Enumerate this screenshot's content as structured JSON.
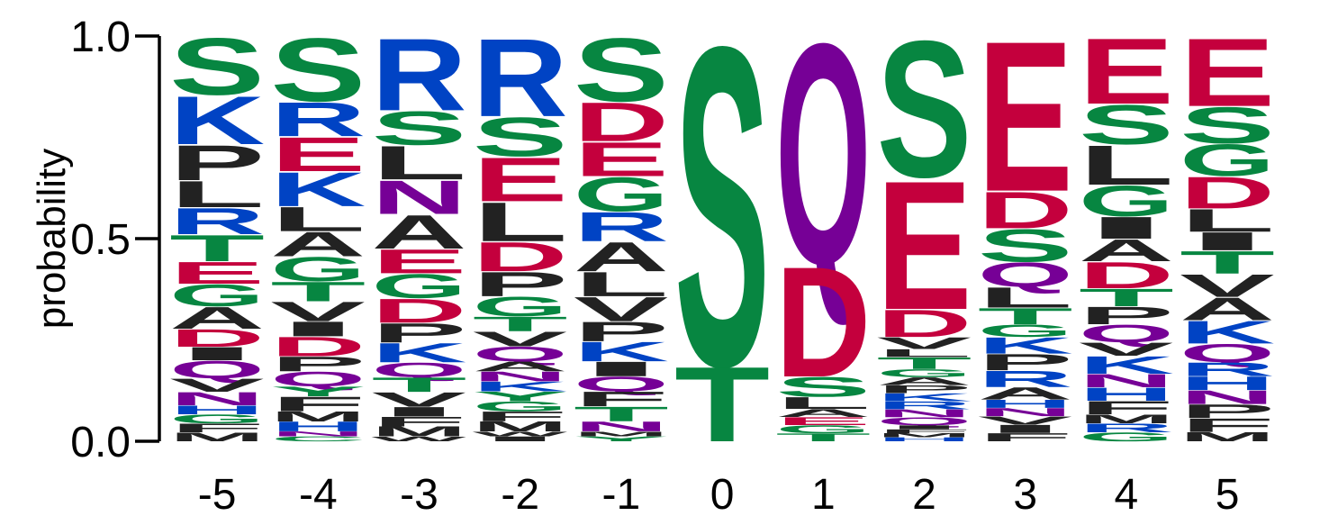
{
  "chart_data": {
    "type": "sequence-logo",
    "ylabel": "probability",
    "ylim": [
      0,
      1
    ],
    "yticks": [
      "0.0",
      "0.5",
      "1.0"
    ],
    "positions": [
      "-5",
      "-4",
      "-3",
      "-2",
      "-1",
      "0",
      "1",
      "2",
      "3",
      "4",
      "5"
    ],
    "colors": {
      "S": "#078641",
      "T": "#078641",
      "G": "#078641",
      "Y": "#078641",
      "C": "#078641",
      "N": "#760096",
      "Q": "#760096",
      "K": "#0043c4",
      "R": "#0043c4",
      "H": "#0043c4",
      "D": "#c4003d",
      "E": "#c4003d",
      "A": "#222222",
      "V": "#222222",
      "L": "#222222",
      "I": "#222222",
      "P": "#222222",
      "F": "#222222",
      "M": "#222222",
      "W": "#222222"
    },
    "stacks": [
      {
        "position": "-5",
        "letters": [
          {
            "aa": "S",
            "p": 0.13
          },
          {
            "aa": "K",
            "p": 0.11
          },
          {
            "aa": "P",
            "p": 0.08
          },
          {
            "aa": "L",
            "p": 0.06
          },
          {
            "aa": "R",
            "p": 0.06
          },
          {
            "aa": "T",
            "p": 0.06
          },
          {
            "aa": "E",
            "p": 0.05
          },
          {
            "aa": "G",
            "p": 0.05
          },
          {
            "aa": "A",
            "p": 0.05
          },
          {
            "aa": "D",
            "p": 0.04
          },
          {
            "aa": "I",
            "p": 0.03
          },
          {
            "aa": "Q",
            "p": 0.04
          },
          {
            "aa": "V",
            "p": 0.03
          },
          {
            "aa": "N",
            "p": 0.03
          },
          {
            "aa": "H",
            "p": 0.02
          },
          {
            "aa": "G",
            "p": 0.02
          },
          {
            "aa": "F",
            "p": 0.02
          },
          {
            "aa": "M",
            "p": 0.02
          }
        ]
      },
      {
        "position": "-4",
        "letters": [
          {
            "aa": "S",
            "p": 0.13
          },
          {
            "aa": "R",
            "p": 0.07
          },
          {
            "aa": "E",
            "p": 0.07
          },
          {
            "aa": "K",
            "p": 0.07
          },
          {
            "aa": "L",
            "p": 0.05
          },
          {
            "aa": "A",
            "p": 0.05
          },
          {
            "aa": "G",
            "p": 0.05
          },
          {
            "aa": "T",
            "p": 0.04
          },
          {
            "aa": "V",
            "p": 0.04
          },
          {
            "aa": "I",
            "p": 0.03
          },
          {
            "aa": "D",
            "p": 0.04
          },
          {
            "aa": "P",
            "p": 0.03
          },
          {
            "aa": "Q",
            "p": 0.03
          },
          {
            "aa": "Y",
            "p": 0.02
          },
          {
            "aa": "F",
            "p": 0.03
          },
          {
            "aa": "M",
            "p": 0.02
          },
          {
            "aa": "H",
            "p": 0.02
          },
          {
            "aa": "N",
            "p": 0.01
          },
          {
            "aa": "C",
            "p": 0.01
          }
        ]
      },
      {
        "position": "-3",
        "letters": [
          {
            "aa": "R",
            "p": 0.15
          },
          {
            "aa": "S",
            "p": 0.07
          },
          {
            "aa": "L",
            "p": 0.07
          },
          {
            "aa": "N",
            "p": 0.07
          },
          {
            "aa": "A",
            "p": 0.07
          },
          {
            "aa": "E",
            "p": 0.05
          },
          {
            "aa": "G",
            "p": 0.05
          },
          {
            "aa": "D",
            "p": 0.05
          },
          {
            "aa": "P",
            "p": 0.04
          },
          {
            "aa": "K",
            "p": 0.04
          },
          {
            "aa": "Q",
            "p": 0.03
          },
          {
            "aa": "T",
            "p": 0.03
          },
          {
            "aa": "V",
            "p": 0.03
          },
          {
            "aa": "I",
            "p": 0.02
          },
          {
            "aa": "F",
            "p": 0.02
          },
          {
            "aa": "M",
            "p": 0.02
          },
          {
            "aa": "W",
            "p": 0.01
          }
        ]
      },
      {
        "position": "-2",
        "letters": [
          {
            "aa": "R",
            "p": 0.16
          },
          {
            "aa": "S",
            "p": 0.08
          },
          {
            "aa": "E",
            "p": 0.09
          },
          {
            "aa": "L",
            "p": 0.08
          },
          {
            "aa": "D",
            "p": 0.06
          },
          {
            "aa": "P",
            "p": 0.05
          },
          {
            "aa": "G",
            "p": 0.04
          },
          {
            "aa": "T",
            "p": 0.03
          },
          {
            "aa": "V",
            "p": 0.03
          },
          {
            "aa": "Q",
            "p": 0.03
          },
          {
            "aa": "A",
            "p": 0.02
          },
          {
            "aa": "N",
            "p": 0.02
          },
          {
            "aa": "K",
            "p": 0.02
          },
          {
            "aa": "Y",
            "p": 0.02
          },
          {
            "aa": "G",
            "p": 0.02
          },
          {
            "aa": "F",
            "p": 0.02
          },
          {
            "aa": "M",
            "p": 0.02
          },
          {
            "aa": "W",
            "p": 0.01
          },
          {
            "aa": "I",
            "p": 0.01
          }
        ]
      },
      {
        "position": "-1",
        "letters": [
          {
            "aa": "S",
            "p": 0.13
          },
          {
            "aa": "D",
            "p": 0.08
          },
          {
            "aa": "E",
            "p": 0.07
          },
          {
            "aa": "G",
            "p": 0.07
          },
          {
            "aa": "R",
            "p": 0.06
          },
          {
            "aa": "A",
            "p": 0.06
          },
          {
            "aa": "L",
            "p": 0.05
          },
          {
            "aa": "V",
            "p": 0.05
          },
          {
            "aa": "P",
            "p": 0.04
          },
          {
            "aa": "K",
            "p": 0.04
          },
          {
            "aa": "I",
            "p": 0.03
          },
          {
            "aa": "Q",
            "p": 0.03
          },
          {
            "aa": "F",
            "p": 0.03
          },
          {
            "aa": "T",
            "p": 0.03
          },
          {
            "aa": "N",
            "p": 0.02
          },
          {
            "aa": "M",
            "p": 0.01
          },
          {
            "aa": "Y",
            "p": 0.01
          }
        ]
      },
      {
        "position": "0",
        "letters": [
          {
            "aa": "S",
            "p": 0.81
          },
          {
            "aa": "T",
            "p": 0.19
          }
        ]
      },
      {
        "position": "1",
        "letters": [
          {
            "aa": "Q",
            "p": 0.56
          },
          {
            "aa": "D",
            "p": 0.28
          },
          {
            "aa": "S",
            "p": 0.05
          },
          {
            "aa": "L",
            "p": 0.03
          },
          {
            "aa": "A",
            "p": 0.02
          },
          {
            "aa": "E",
            "p": 0.02
          },
          {
            "aa": "G",
            "p": 0.02
          },
          {
            "aa": "T",
            "p": 0.02
          }
        ]
      },
      {
        "position": "2",
        "letters": [
          {
            "aa": "S",
            "p": 0.35
          },
          {
            "aa": "E",
            "p": 0.33
          },
          {
            "aa": "D",
            "p": 0.07
          },
          {
            "aa": "V",
            "p": 0.03
          },
          {
            "aa": "L",
            "p": 0.02
          },
          {
            "aa": "T",
            "p": 0.03
          },
          {
            "aa": "G",
            "p": 0.02
          },
          {
            "aa": "A",
            "p": 0.02
          },
          {
            "aa": "P",
            "p": 0.02
          },
          {
            "aa": "K",
            "p": 0.02
          },
          {
            "aa": "R",
            "p": 0.02
          },
          {
            "aa": "N",
            "p": 0.02
          },
          {
            "aa": "Q",
            "p": 0.02
          },
          {
            "aa": "I",
            "p": 0.01
          },
          {
            "aa": "F",
            "p": 0.01
          },
          {
            "aa": "M",
            "p": 0.01
          },
          {
            "aa": "H",
            "p": 0.01
          }
        ]
      },
      {
        "position": "3",
        "letters": [
          {
            "aa": "E",
            "p": 0.37
          },
          {
            "aa": "D",
            "p": 0.09
          },
          {
            "aa": "S",
            "p": 0.08
          },
          {
            "aa": "Q",
            "p": 0.06
          },
          {
            "aa": "L",
            "p": 0.05
          },
          {
            "aa": "T",
            "p": 0.04
          },
          {
            "aa": "G",
            "p": 0.03
          },
          {
            "aa": "K",
            "p": 0.04
          },
          {
            "aa": "P",
            "p": 0.04
          },
          {
            "aa": "R",
            "p": 0.04
          },
          {
            "aa": "A",
            "p": 0.03
          },
          {
            "aa": "H",
            "p": 0.02
          },
          {
            "aa": "N",
            "p": 0.02
          },
          {
            "aa": "V",
            "p": 0.02
          },
          {
            "aa": "I",
            "p": 0.02
          },
          {
            "aa": "F",
            "p": 0.02
          }
        ]
      },
      {
        "position": "4",
        "letters": [
          {
            "aa": "E",
            "p": 0.15
          },
          {
            "aa": "S",
            "p": 0.09
          },
          {
            "aa": "L",
            "p": 0.09
          },
          {
            "aa": "G",
            "p": 0.07
          },
          {
            "aa": "I",
            "p": 0.05
          },
          {
            "aa": "A",
            "p": 0.05
          },
          {
            "aa": "D",
            "p": 0.06
          },
          {
            "aa": "T",
            "p": 0.04
          },
          {
            "aa": "P",
            "p": 0.04
          },
          {
            "aa": "Q",
            "p": 0.04
          },
          {
            "aa": "V",
            "p": 0.03
          },
          {
            "aa": "K",
            "p": 0.04
          },
          {
            "aa": "N",
            "p": 0.03
          },
          {
            "aa": "H",
            "p": 0.03
          },
          {
            "aa": "F",
            "p": 0.03
          },
          {
            "aa": "M",
            "p": 0.02
          },
          {
            "aa": "R",
            "p": 0.02
          },
          {
            "aa": "G",
            "p": 0.02
          }
        ]
      },
      {
        "position": "5",
        "letters": [
          {
            "aa": "E",
            "p": 0.15
          },
          {
            "aa": "S",
            "p": 0.08
          },
          {
            "aa": "G",
            "p": 0.07
          },
          {
            "aa": "D",
            "p": 0.07
          },
          {
            "aa": "L",
            "p": 0.05
          },
          {
            "aa": "I",
            "p": 0.04
          },
          {
            "aa": "T",
            "p": 0.05
          },
          {
            "aa": "V",
            "p": 0.05
          },
          {
            "aa": "A",
            "p": 0.05
          },
          {
            "aa": "K",
            "p": 0.05
          },
          {
            "aa": "Q",
            "p": 0.04
          },
          {
            "aa": "R",
            "p": 0.03
          },
          {
            "aa": "H",
            "p": 0.03
          },
          {
            "aa": "N",
            "p": 0.03
          },
          {
            "aa": "P",
            "p": 0.03
          },
          {
            "aa": "F",
            "p": 0.03
          },
          {
            "aa": "M",
            "p": 0.02
          }
        ]
      }
    ]
  }
}
